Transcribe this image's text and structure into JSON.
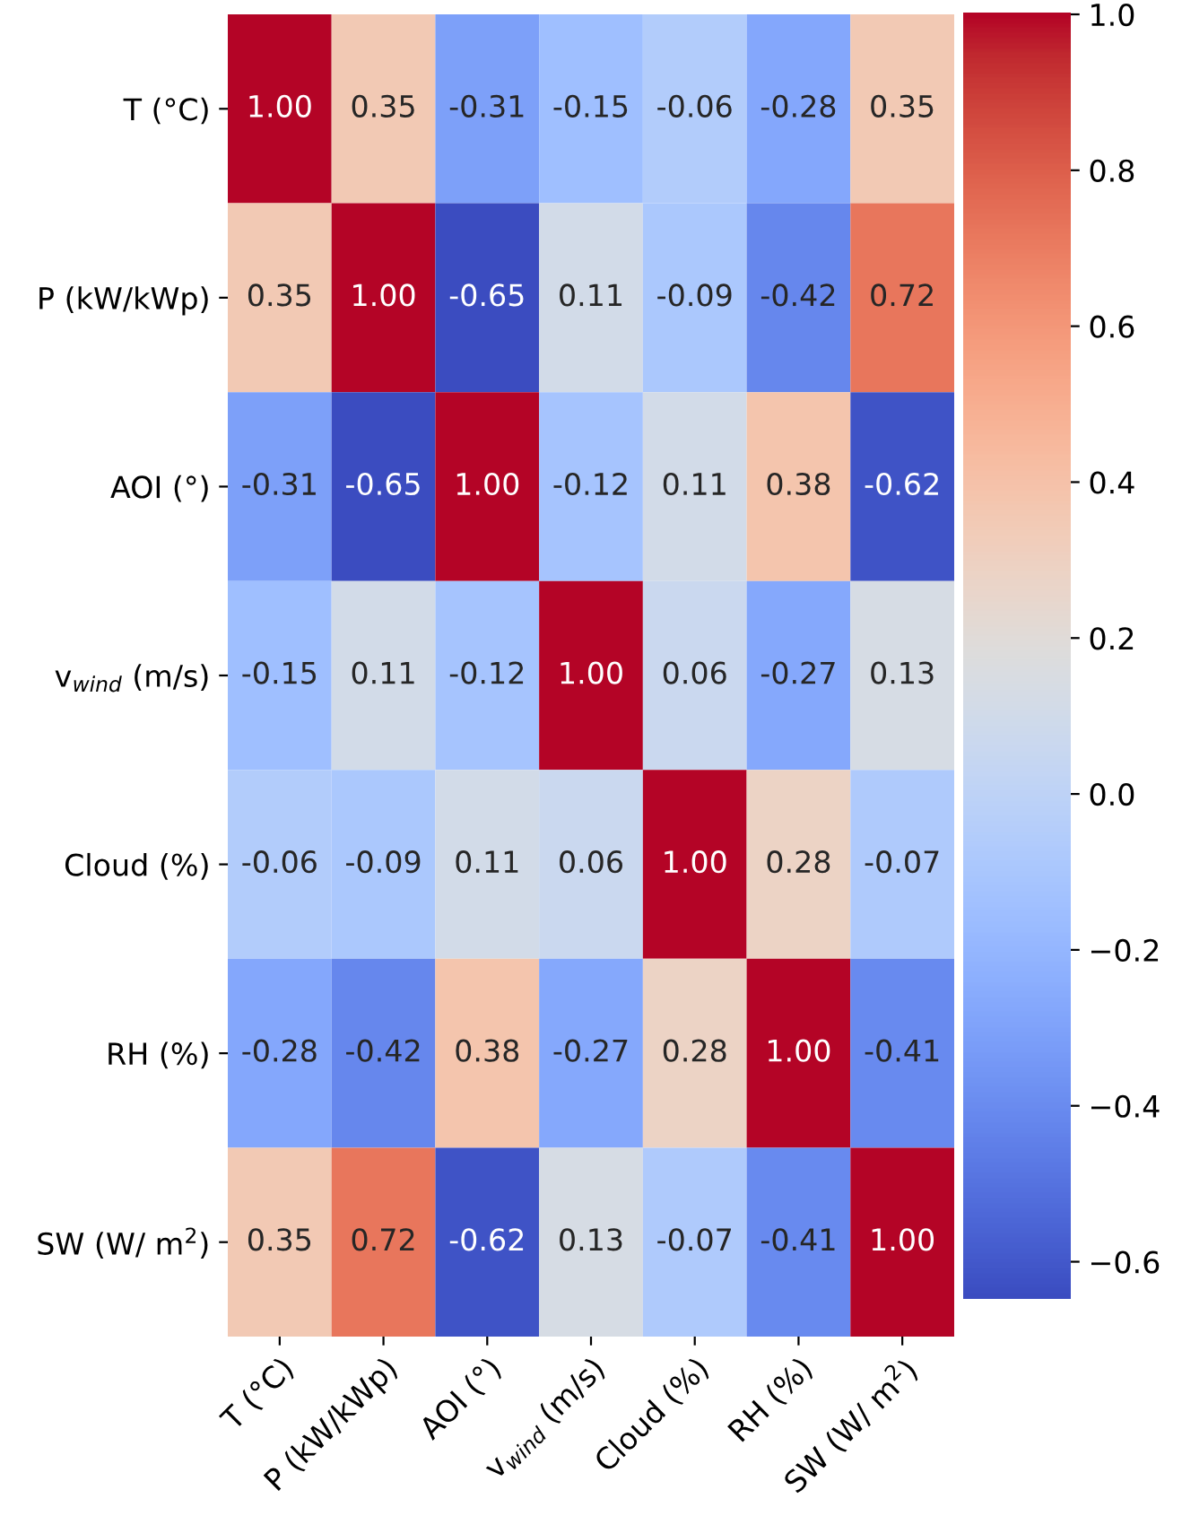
{
  "chart_data": {
    "type": "heatmap",
    "categories": [
      "T (°C)",
      "P (kW/kWp)",
      "AOI (°)",
      "v$_{wind}$ (m/s)",
      "Cloud (%)",
      "RH (%)",
      "SW (W/ m$^{2}$)"
    ],
    "y_categories": [
      "T (°C)",
      "P (kW/kWp)",
      "AOI (°)",
      "v$_{wind}$ (m/s)",
      "Cloud (%)",
      "RH (%)",
      "SW (W/ m$^{2}$)"
    ],
    "cell_labels": [
      [
        "1.00",
        "0.35",
        "-0.31",
        "-0.15",
        "-0.06",
        "-0.28",
        "0.35"
      ],
      [
        "0.35",
        "1.00",
        "-0.65",
        "0.11",
        "-0.09",
        "-0.42",
        "0.72"
      ],
      [
        "-0.31",
        "-0.65",
        "1.00",
        "-0.12",
        "0.11",
        "0.38",
        "-0.62"
      ],
      [
        "-0.15",
        "0.11",
        "-0.12",
        "1.00",
        "0.06",
        "-0.27",
        "0.13"
      ],
      [
        "-0.06",
        "-0.09",
        "0.11",
        "0.06",
        "1.00",
        "0.28",
        "-0.07"
      ],
      [
        "-0.28",
        "-0.42",
        "0.38",
        "-0.27",
        "0.28",
        "1.00",
        "-0.41"
      ],
      [
        "0.35",
        "0.72",
        "-0.62",
        "0.13",
        "-0.07",
        "-0.41",
        "1.00"
      ]
    ],
    "cells": [
      [
        1.0,
        0.35,
        -0.31,
        -0.15,
        -0.06,
        -0.28,
        0.35
      ],
      [
        0.35,
        1.0,
        -0.65,
        0.11,
        -0.09,
        -0.42,
        0.72
      ],
      [
        -0.31,
        -0.65,
        1.0,
        -0.12,
        0.11,
        0.38,
        -0.62
      ],
      [
        -0.15,
        0.11,
        -0.12,
        1.0,
        0.06,
        -0.27,
        0.13
      ],
      [
        -0.06,
        -0.09,
        0.11,
        0.06,
        1.0,
        0.28,
        -0.07
      ],
      [
        -0.28,
        -0.42,
        0.38,
        -0.27,
        0.28,
        1.0,
        -0.41
      ],
      [
        0.35,
        0.72,
        -0.62,
        0.13,
        -0.07,
        -0.41,
        1.0
      ]
    ],
    "data_labels": true,
    "clim": [
      -0.65,
      1.0
    ],
    "cticks": [
      {
        "value": -0.6,
        "label": "−0.6"
      },
      {
        "value": -0.4,
        "label": "−0.4"
      },
      {
        "value": -0.2,
        "label": "−0.2"
      },
      {
        "value": 0,
        "label": "0.0"
      },
      0.2,
      0.4,
      0.6,
      0.8,
      {
        "value": 1,
        "label": "1.0"
      }
    ]
  }
}
